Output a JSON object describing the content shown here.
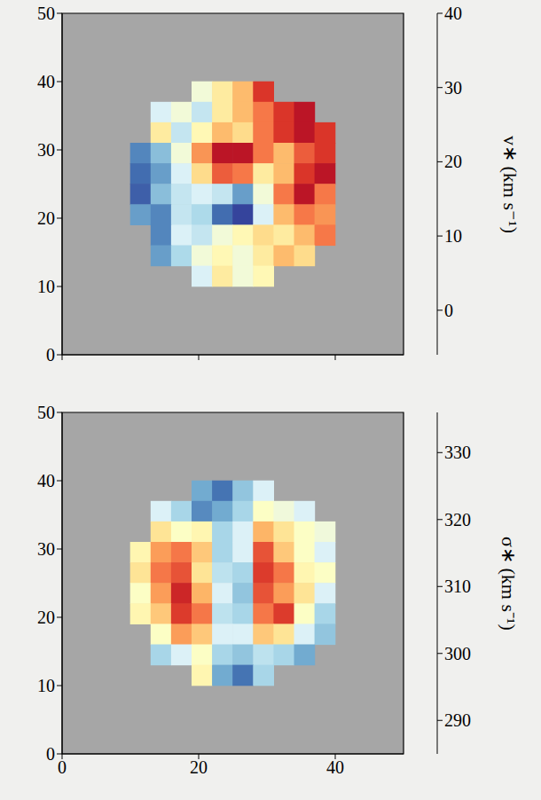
{
  "chart_data": [
    {
      "type": "heatmap",
      "x": [
        11.5,
        14.5,
        17.5,
        20.5,
        23.5,
        26.5,
        29.5,
        32.5,
        35.5,
        38.5
      ],
      "y": [
        38.5,
        35.5,
        32.5,
        29.5,
        26.5,
        23.5,
        20.5,
        17.5,
        14.5,
        11.5
      ],
      "values": [
        [
          null,
          null,
          null,
          15,
          20,
          25,
          35,
          null,
          null,
          null
        ],
        [
          null,
          12,
          15,
          10,
          20,
          25,
          30,
          35,
          38,
          null
        ],
        [
          null,
          20,
          10,
          18,
          25,
          22,
          30,
          35,
          38,
          35
        ],
        [
          0,
          5,
          15,
          28,
          38,
          38,
          30,
          25,
          32,
          35
        ],
        [
          -2,
          2,
          12,
          22,
          32,
          30,
          20,
          25,
          35,
          38
        ],
        [
          -3,
          5,
          10,
          12,
          10,
          2,
          15,
          30,
          38,
          30
        ],
        [
          2,
          0,
          10,
          8,
          -2,
          -5,
          12,
          25,
          30,
          28
        ],
        [
          null,
          0,
          12,
          10,
          15,
          18,
          22,
          20,
          25,
          30
        ],
        [
          null,
          2,
          8,
          15,
          18,
          15,
          20,
          25,
          22,
          null
        ],
        [
          null,
          null,
          null,
          12,
          20,
          15,
          18,
          null,
          null,
          null
        ]
      ],
      "xlim": [
        0,
        50
      ],
      "ylim": [
        0,
        50
      ],
      "xticks": [
        0,
        20,
        40
      ],
      "yticks": [
        0,
        10,
        20,
        30,
        40,
        50
      ],
      "tick_labels": "y",
      "colorbar": {
        "label": "v∗ (km s⁻¹)",
        "range": [
          -6,
          40
        ],
        "ticks": [
          0,
          10,
          20,
          30,
          40
        ]
      }
    },
    {
      "type": "heatmap",
      "x": [
        11.5,
        14.5,
        17.5,
        20.5,
        23.5,
        26.5,
        29.5,
        32.5,
        35.5,
        38.5
      ],
      "y": [
        38.5,
        35.5,
        32.5,
        29.5,
        26.5,
        23.5,
        20.5,
        17.5,
        14.5,
        11.5
      ],
      "values": [
        [
          null,
          null,
          null,
          295,
          290,
          298,
          305,
          null,
          null,
          null
        ],
        [
          null,
          305,
          300,
          292,
          295,
          300,
          310,
          308,
          305,
          null
        ],
        [
          null,
          315,
          310,
          312,
          300,
          305,
          320,
          315,
          310,
          308
        ],
        [
          312,
          322,
          325,
          318,
          300,
          305,
          328,
          318,
          310,
          305
        ],
        [
          315,
          325,
          328,
          315,
          302,
          300,
          330,
          325,
          312,
          310
        ],
        [
          310,
          322,
          332,
          320,
          305,
          298,
          328,
          322,
          315,
          305
        ],
        [
          312,
          318,
          330,
          325,
          302,
          300,
          325,
          330,
          310,
          300
        ],
        [
          null,
          310,
          322,
          318,
          305,
          305,
          318,
          315,
          305,
          298
        ],
        [
          null,
          300,
          305,
          310,
          300,
          298,
          302,
          300,
          295,
          null
        ],
        [
          null,
          null,
          null,
          312,
          295,
          290,
          300,
          null,
          null,
          null
        ]
      ],
      "xlim": [
        0,
        50
      ],
      "ylim": [
        0,
        50
      ],
      "xticks": [
        0,
        20,
        40
      ],
      "yticks": [
        0,
        10,
        20,
        30,
        40,
        50
      ],
      "tick_labels": true,
      "colorbar": {
        "label": "σ∗ (km s⁻¹)",
        "range": [
          285,
          336
        ],
        "ticks": [
          290,
          300,
          310,
          320,
          330
        ]
      }
    }
  ]
}
